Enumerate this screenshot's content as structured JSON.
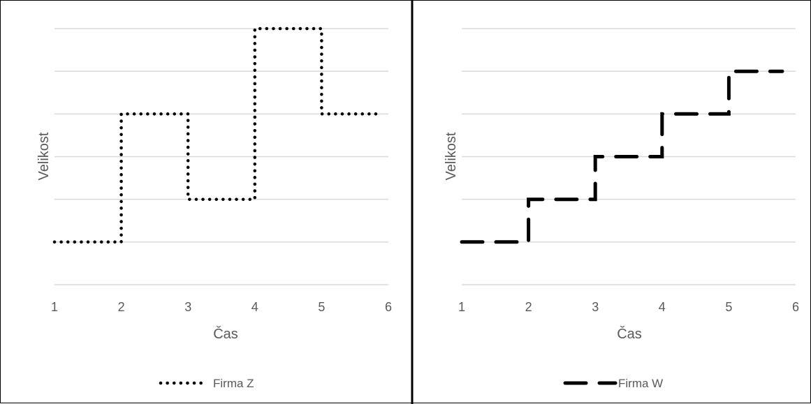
{
  "chart_data": [
    {
      "type": "line",
      "title": "",
      "xlabel": "Čas",
      "ylabel": "Velikost",
      "x_ticks": [
        "1",
        "2",
        "3",
        "4",
        "5",
        "6"
      ],
      "xlim": [
        1,
        6
      ],
      "ylim": [
        0,
        6
      ],
      "y_tick_labels_shown": false,
      "grid": true,
      "legend": "bottom",
      "line_style": "dotted",
      "series": [
        {
          "name": "Firma Z",
          "x": [
            1,
            2,
            2,
            3,
            3,
            4,
            4,
            5,
            5,
            5.9
          ],
          "values": [
            1,
            1,
            4,
            4,
            2,
            2,
            6,
            6,
            4,
            4
          ]
        }
      ]
    },
    {
      "type": "line",
      "title": "",
      "xlabel": "Čas",
      "ylabel": "Velikost",
      "x_ticks": [
        "1",
        "2",
        "3",
        "4",
        "5",
        "6"
      ],
      "xlim": [
        1,
        6
      ],
      "ylim": [
        0,
        6
      ],
      "y_tick_labels_shown": false,
      "grid": true,
      "legend": "bottom",
      "line_style": "dashed",
      "series": [
        {
          "name": "Firma W",
          "x": [
            1,
            2,
            2,
            3,
            3,
            4,
            4,
            5,
            5,
            5.8
          ],
          "values": [
            1,
            1,
            2,
            2,
            3,
            3,
            4,
            4,
            5,
            5
          ]
        }
      ]
    }
  ],
  "colors": {
    "line": "#000000",
    "grid": "#d9d9d9",
    "axis_text": "#595959",
    "divider": "#000000"
  }
}
